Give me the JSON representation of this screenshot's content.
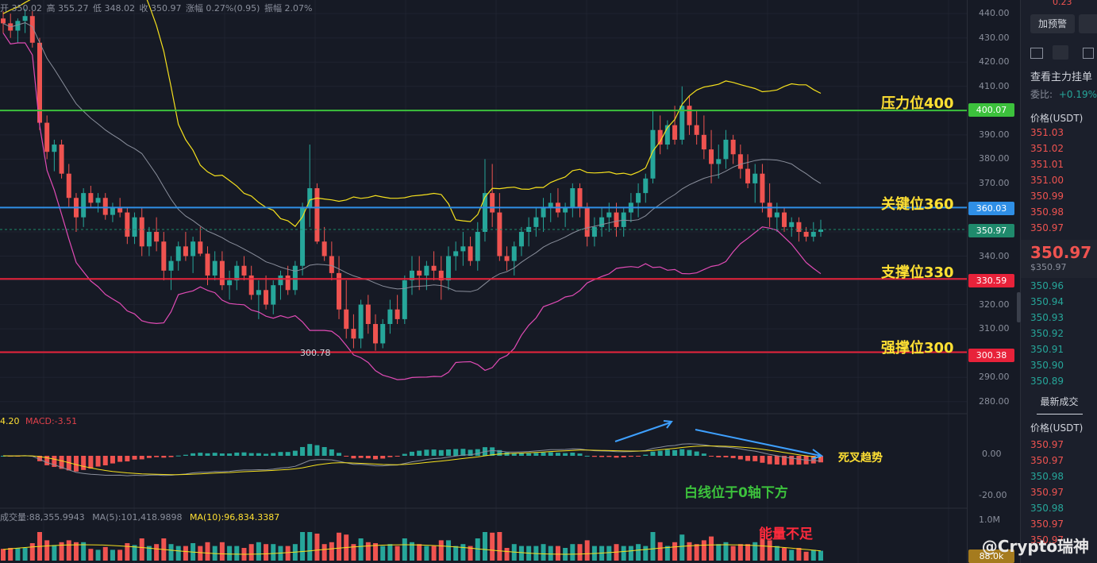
{
  "header": {
    "ohlc": [
      {
        "label": "开",
        "value": "350.02"
      },
      {
        "label": "高",
        "value": "355.27"
      },
      {
        "label": "低",
        "value": "348.02"
      },
      {
        "label": "收",
        "value": "350.97"
      },
      {
        "label": "涨幅",
        "value": "0.27%(0.95)"
      },
      {
        "label": "振幅",
        "value": "2.07%"
      }
    ]
  },
  "levels": {
    "resistance": {
      "label": "压力位400",
      "price_tag": "400.07",
      "price": 400.07,
      "color": "#3cc13c"
    },
    "key": {
      "label": "关键位360",
      "price_tag": "360.03",
      "price": 360.03,
      "color": "#2f8fe6"
    },
    "support": {
      "label": "支撑位330",
      "price_tag": "330.59",
      "price": 330.59,
      "color": "#e8223a"
    },
    "strong_support": {
      "label": "强撑位300",
      "price_tag": "300.38",
      "price": 300.38,
      "color": "#e8223a"
    },
    "current": {
      "price_tag": "350.97",
      "price": 350.97,
      "color": "#1f8a6c"
    }
  },
  "low_marker": "300.78",
  "macd": {
    "label_prefix": "4.20",
    "label": "MACD:-3.51",
    "annotation": "死叉趋势",
    "annotation2": "白线位于0轴下方",
    "axis_ticks": [
      "0.00",
      "-20.00"
    ]
  },
  "volume": {
    "label_vol": "成交量:88,355.9943",
    "label_ma5": "MA(5):101,418.9898",
    "label_ma10": "MA(10):96,834.3387",
    "annotation": "能量不足",
    "axis_top": "1.0M",
    "axis_tag": "88.0k"
  },
  "chart_data": {
    "type": "candlestick",
    "y_axis_ticks": [
      440,
      430,
      420,
      410,
      400,
      390,
      380,
      370,
      360,
      350,
      340,
      330,
      320,
      310,
      300,
      290,
      280
    ],
    "ylim": [
      275,
      443
    ],
    "series_hint": "approximate daily candles read from chart",
    "candles": [
      [
        438,
        441,
        432,
        436
      ],
      [
        436,
        440,
        430,
        433
      ],
      [
        433,
        438,
        428,
        437
      ],
      [
        437,
        442,
        432,
        439
      ],
      [
        439,
        441,
        426,
        428
      ],
      [
        428,
        430,
        392,
        395
      ],
      [
        395,
        398,
        380,
        383
      ],
      [
        383,
        388,
        375,
        386
      ],
      [
        386,
        388,
        372,
        374
      ],
      [
        374,
        378,
        360,
        364
      ],
      [
        364,
        366,
        350,
        356
      ],
      [
        356,
        368,
        352,
        366
      ],
      [
        366,
        369,
        360,
        362
      ],
      [
        362,
        366,
        358,
        364
      ],
      [
        364,
        366,
        355,
        357
      ],
      [
        357,
        362,
        354,
        360
      ],
      [
        360,
        364,
        356,
        358
      ],
      [
        358,
        360,
        345,
        348
      ],
      [
        348,
        358,
        345,
        356
      ],
      [
        356,
        360,
        340,
        344
      ],
      [
        344,
        352,
        340,
        350
      ],
      [
        350,
        356,
        342,
        346
      ],
      [
        346,
        350,
        330,
        334
      ],
      [
        334,
        340,
        326,
        338
      ],
      [
        338,
        346,
        334,
        344
      ],
      [
        344,
        350,
        338,
        340
      ],
      [
        340,
        348,
        333,
        346
      ],
      [
        346,
        352,
        340,
        341
      ],
      [
        341,
        344,
        328,
        332
      ],
      [
        332,
        342,
        330,
        338
      ],
      [
        338,
        342,
        326,
        328
      ],
      [
        328,
        334,
        322,
        330
      ],
      [
        330,
        338,
        326,
        336
      ],
      [
        336,
        340,
        330,
        332
      ],
      [
        332,
        336,
        322,
        324
      ],
      [
        324,
        330,
        314,
        326
      ],
      [
        326,
        332,
        318,
        320
      ],
      [
        320,
        330,
        316,
        328
      ],
      [
        328,
        334,
        322,
        332
      ],
      [
        332,
        336,
        324,
        326
      ],
      [
        326,
        338,
        324,
        336
      ],
      [
        336,
        362,
        332,
        360
      ],
      [
        360,
        386,
        352,
        368
      ],
      [
        368,
        370,
        345,
        346
      ],
      [
        346,
        352,
        338,
        340
      ],
      [
        340,
        346,
        330,
        333
      ],
      [
        333,
        340,
        314,
        318
      ],
      [
        318,
        330,
        306,
        310
      ],
      [
        310,
        316,
        302,
        306
      ],
      [
        306,
        322,
        302,
        320
      ],
      [
        320,
        324,
        308,
        312
      ],
      [
        312,
        316,
        301,
        304
      ],
      [
        304,
        314,
        302,
        312
      ],
      [
        312,
        322,
        308,
        318
      ],
      [
        318,
        324,
        312,
        314
      ],
      [
        314,
        332,
        312,
        330
      ],
      [
        330,
        340,
        324,
        334
      ],
      [
        334,
        340,
        326,
        332
      ],
      [
        332,
        338,
        326,
        336
      ],
      [
        336,
        342,
        330,
        334
      ],
      [
        334,
        340,
        322,
        330
      ],
      [
        330,
        344,
        326,
        340
      ],
      [
        340,
        346,
        334,
        342
      ],
      [
        342,
        350,
        336,
        344
      ],
      [
        344,
        348,
        336,
        338
      ],
      [
        338,
        354,
        334,
        350
      ],
      [
        350,
        380,
        346,
        366
      ],
      [
        366,
        378,
        352,
        358
      ],
      [
        358,
        366,
        338,
        340
      ],
      [
        340,
        344,
        334,
        338
      ],
      [
        338,
        346,
        332,
        344
      ],
      [
        344,
        352,
        340,
        350
      ],
      [
        350,
        356,
        344,
        352
      ],
      [
        352,
        360,
        348,
        356
      ],
      [
        356,
        364,
        350,
        360
      ],
      [
        360,
        366,
        354,
        362
      ],
      [
        362,
        368,
        356,
        358
      ],
      [
        358,
        362,
        352,
        360
      ],
      [
        360,
        370,
        356,
        368
      ],
      [
        368,
        370,
        356,
        360
      ],
      [
        360,
        362,
        344,
        348
      ],
      [
        348,
        356,
        344,
        352
      ],
      [
        352,
        360,
        348,
        356
      ],
      [
        356,
        362,
        350,
        358
      ],
      [
        358,
        362,
        348,
        352
      ],
      [
        352,
        360,
        348,
        358
      ],
      [
        358,
        366,
        354,
        362
      ],
      [
        362,
        370,
        356,
        366
      ],
      [
        366,
        374,
        362,
        372
      ],
      [
        372,
        400,
        370,
        392
      ],
      [
        392,
        398,
        382,
        386
      ],
      [
        386,
        396,
        384,
        394
      ],
      [
        394,
        402,
        386,
        388
      ],
      [
        388,
        410,
        386,
        402
      ],
      [
        402,
        406,
        390,
        394
      ],
      [
        394,
        400,
        386,
        390
      ],
      [
        390,
        398,
        380,
        384
      ],
      [
        384,
        392,
        370,
        378
      ],
      [
        378,
        386,
        372,
        380
      ],
      [
        380,
        392,
        376,
        388
      ],
      [
        388,
        390,
        378,
        382
      ],
      [
        382,
        386,
        372,
        376
      ],
      [
        376,
        382,
        368,
        370
      ],
      [
        370,
        378,
        362,
        374
      ],
      [
        374,
        378,
        358,
        362
      ],
      [
        362,
        370,
        352,
        356
      ],
      [
        356,
        362,
        350,
        358
      ],
      [
        358,
        360,
        350,
        352
      ],
      [
        352,
        356,
        348,
        354
      ],
      [
        354,
        356,
        346,
        350
      ],
      [
        350,
        352,
        346,
        348
      ],
      [
        348,
        354,
        346,
        350
      ],
      [
        350,
        355,
        348,
        350.97
      ]
    ]
  },
  "sidebar": {
    "top_text": "0.23",
    "alert_button": "加预警",
    "view_orders": "查看主力挂单",
    "ratio_label": "委比:",
    "ratio_value": "+0.19%",
    "price_header": "价格(USDT)",
    "asks": [
      "351.03",
      "351.02",
      "351.01",
      "351.00",
      "350.99",
      "350.98",
      "350.97"
    ],
    "last_price": "350.97",
    "last_price_usd": "$350.97",
    "bids": [
      "350.96",
      "350.94",
      "350.93",
      "350.92",
      "350.91",
      "350.90",
      "350.89"
    ],
    "trades_title": "最新成交",
    "trades_header": "价格(USDT)",
    "trades": [
      {
        "price": "350.97",
        "dir": "down"
      },
      {
        "price": "350.97",
        "dir": "down"
      },
      {
        "price": "350.98",
        "dir": "up"
      },
      {
        "price": "350.97",
        "dir": "down"
      },
      {
        "price": "350.98",
        "dir": "up"
      },
      {
        "price": "350.97",
        "dir": "down"
      },
      {
        "price": "350.97",
        "dir": "down"
      }
    ]
  },
  "watermark": "@Crypto瑞神",
  "colors": {
    "up": "#26a69a",
    "down": "#ef5350",
    "bg": "#161a25"
  }
}
